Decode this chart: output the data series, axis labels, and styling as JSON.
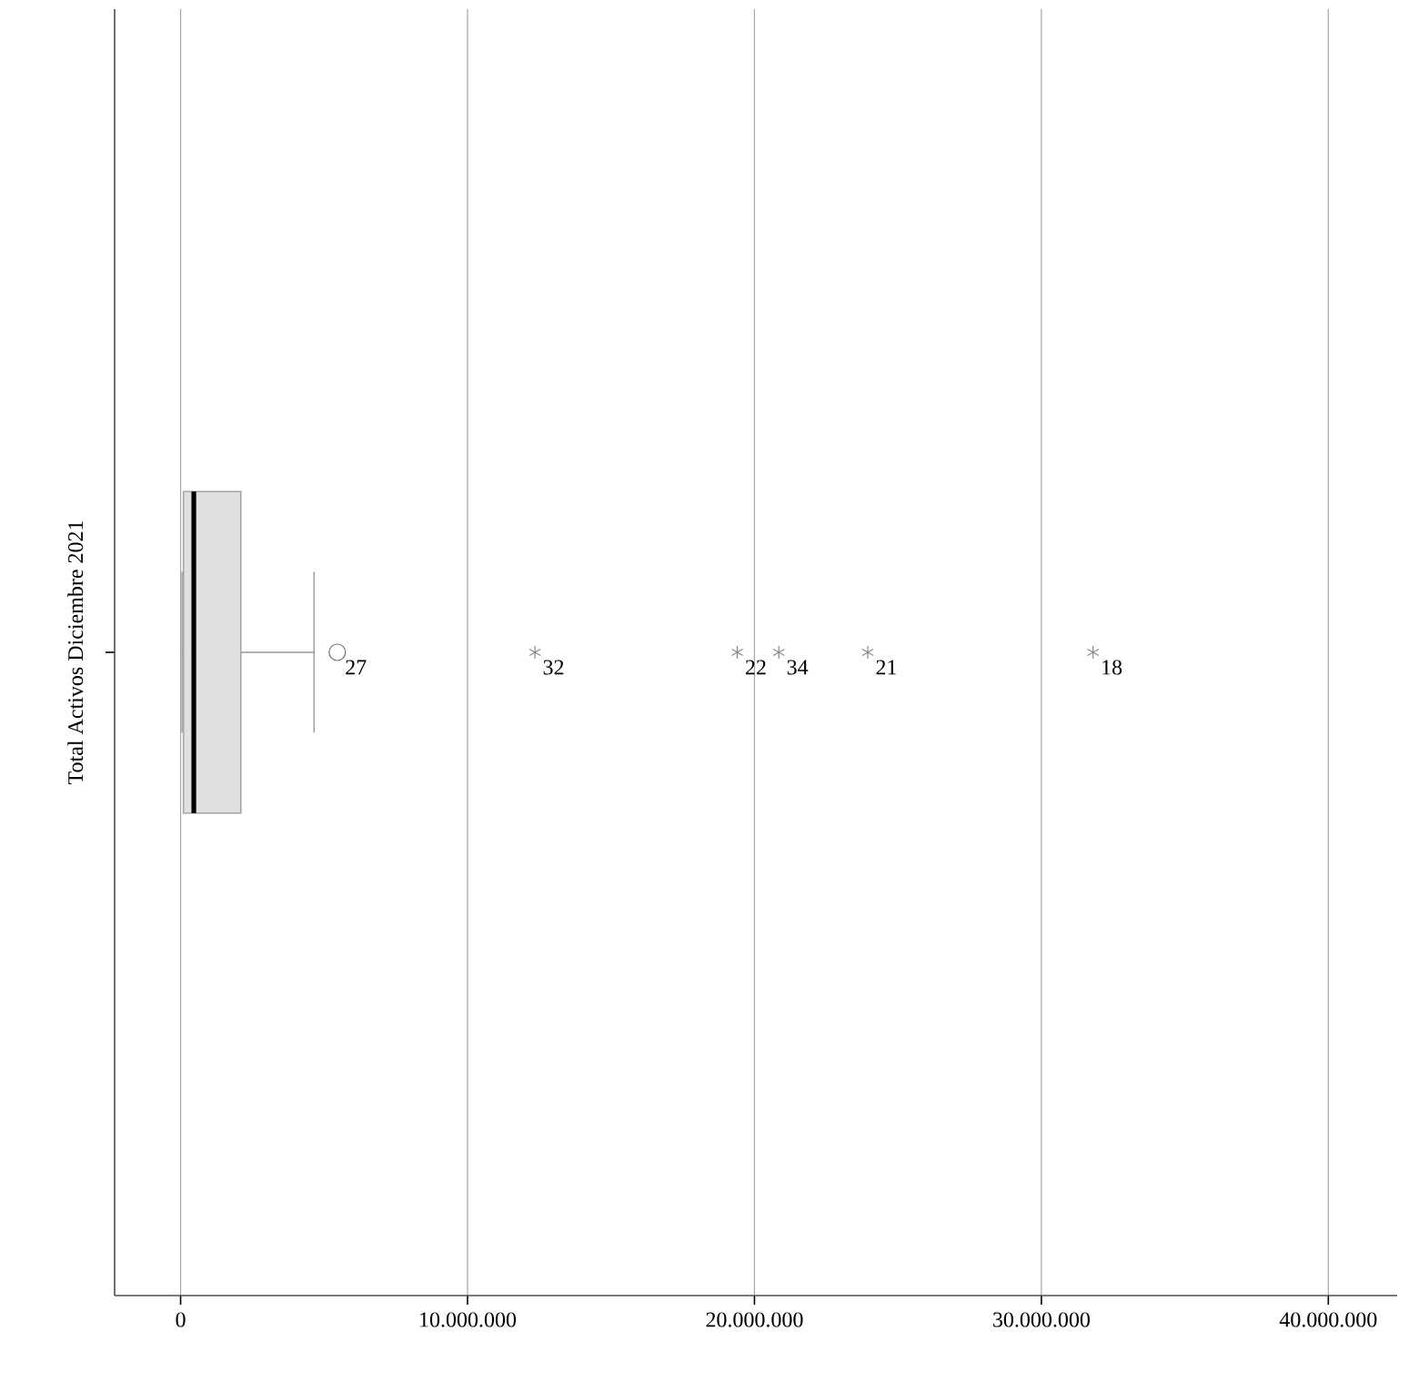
{
  "chart_data": {
    "type": "box",
    "orientation": "horizontal",
    "ylabel": "Total Activos Diciembre 2021",
    "categories": [
      null
    ],
    "xlim": [
      -2300000,
      42400000
    ],
    "xticks": [
      0,
      {
        "value": 10000000,
        "label": "10.000.000"
      },
      {
        "value": 20000000,
        "label": "20.000.000"
      },
      {
        "value": 30000000,
        "label": "30.000.000"
      },
      {
        "value": 40000000,
        "label": "40.000.000"
      }
    ],
    "grid": "x",
    "series": [
      {
        "color": "#e0e0e0",
        "boxes": [
          {
            "low": 50000,
            "q1": 100000,
            "median": 460000,
            "q3": 2100000,
            "high": 4650000,
            "outliers": [
              5460000
            ]
          }
        ]
      },
      {
        "type": "scatter",
        "marker": "cross",
        "color": "#888888",
        "x": [
          null,
          null,
          null,
          null,
          null
        ],
        "values": [
          12350000,
          19400000,
          20850000,
          23950000,
          31800000
        ]
      }
    ],
    "annotations": [
      "27",
      "32",
      "22",
      "34",
      "21",
      "18"
    ]
  }
}
